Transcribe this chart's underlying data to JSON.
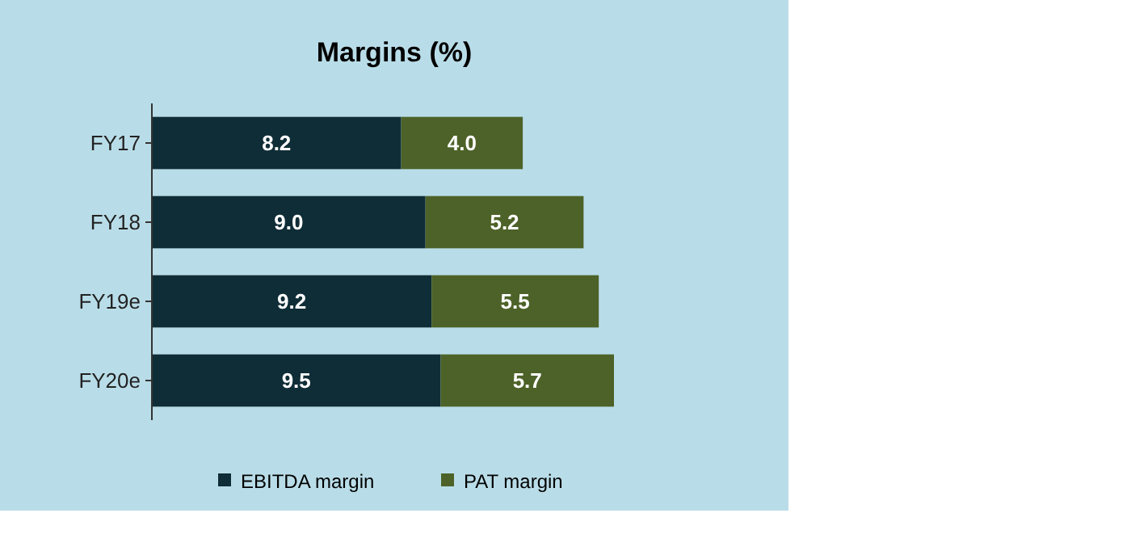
{
  "chart_data": {
    "type": "bar",
    "orientation": "horizontal",
    "stacked": true,
    "title": "Margins (%)",
    "categories": [
      "FY17",
      "FY18",
      "FY19e",
      "FY20e"
    ],
    "series": [
      {
        "name": "EBITDA margin",
        "color": "#0f2d36",
        "values": [
          8.2,
          9.0,
          9.2,
          9.5
        ],
        "value_labels": [
          "8.2",
          "9.0",
          "9.2",
          "9.5"
        ]
      },
      {
        "name": "PAT margin",
        "color": "#4d6228",
        "values": [
          4.0,
          5.2,
          5.5,
          5.7
        ],
        "value_labels": [
          "4.0",
          "5.2",
          "5.5",
          "5.7"
        ]
      }
    ],
    "legend": "bottom"
  }
}
